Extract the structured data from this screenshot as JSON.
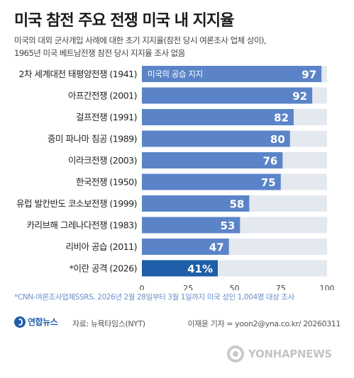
{
  "header": {
    "title": "미국 참전 주요 전쟁 미국 내 지지율",
    "subtitle_line1": "미국의 대외 군사개입 사례에 대한 초기 지지율(참전 당시 여론조사 업체 상이),",
    "subtitle_line2": "1965년 미국 베트남전쟁 참전 당시 지지율 조사 없음"
  },
  "colors": {
    "bar": "#5b84c8",
    "highlight_bar": "#1f5ea8",
    "track": "#e4e8ef",
    "footnote": "#6a8fc8"
  },
  "chart_data": {
    "type": "bar",
    "orientation": "horizontal",
    "categories": [
      "2차 세계대전 태평양전쟁 (1941)",
      "아프간전쟁 (2001)",
      "걸프전쟁 (1991)",
      "중미 파나마 침공 (1989)",
      "이라크전쟁 (2003)",
      "한국전쟁 (1950)",
      "유럽 발칸반도 코소보전쟁 (1999)",
      "카리브해 그레나다전쟁 (1983)",
      "리비아 공습 (2011)",
      "*이란 공격 (2026)"
    ],
    "values": [
      97,
      92,
      82,
      80,
      76,
      75,
      58,
      53,
      47,
      41
    ],
    "value_labels": [
      "97",
      "92",
      "82",
      "80",
      "76",
      "75",
      "58",
      "53",
      "47",
      "41%"
    ],
    "highlight_index": 9,
    "series_label": "미국의 공습 지지",
    "xlim": [
      0,
      100
    ],
    "xticks": [
      "0",
      "25",
      "50",
      "75",
      "100"
    ],
    "grid": false,
    "xlabel": "",
    "ylabel": ""
  },
  "footer": {
    "footnote": "*CNN-여론조사업체SSRS, 2026년 2월 28일부터 3월 1일까지 미국 성인 1,004명 대상 조사",
    "logo_text": "연합뉴스",
    "source": "자료: 뉴욕타임스(NYT)",
    "credit": "이재윤 기자 = yoon2@yna.co.kr/ 20260311",
    "watermark": "YONHAPNEWS"
  }
}
